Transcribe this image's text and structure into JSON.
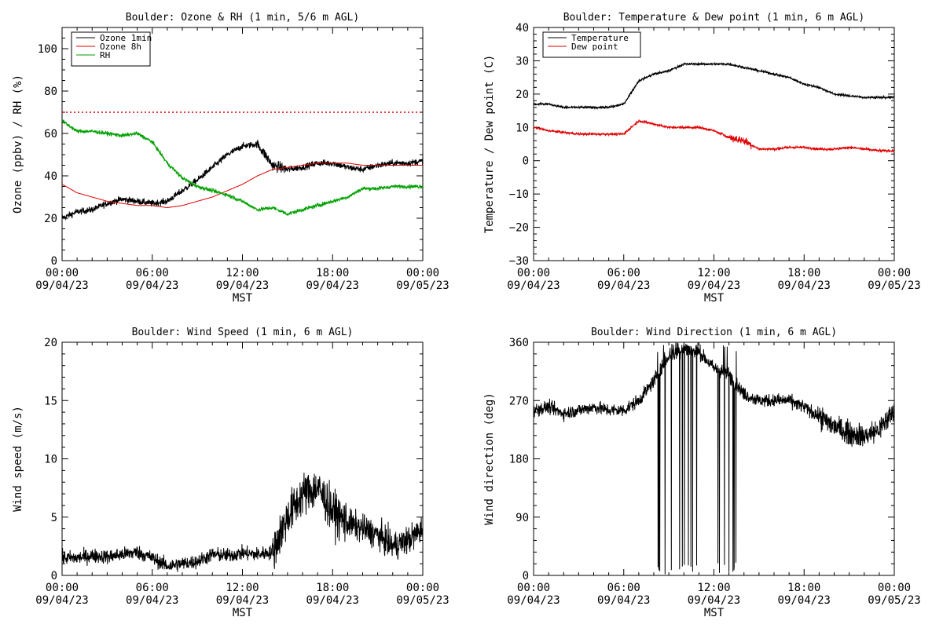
{
  "charts": [
    {
      "id": "ozone",
      "title": "Boulder: Ozone & RH (1 min, 5/6 m AGL)",
      "ylabel": "Ozone (ppbv) / RH (%)",
      "xlabel": "MST",
      "ylim": [
        0,
        110
      ],
      "yticks": [
        "0",
        "20",
        "40",
        "60",
        "80",
        "100"
      ],
      "ytick_values": [
        0,
        20,
        40,
        60,
        80,
        100
      ],
      "legend": [
        {
          "label": "Ozone 1min",
          "color": "#000000"
        },
        {
          "label": "Ozone 8h",
          "color": "#e00000"
        },
        {
          "label": "RH",
          "color": "#00a000"
        }
      ]
    },
    {
      "id": "temp",
      "title": "Boulder: Temperature & Dew point (1 min, 6 m AGL)",
      "ylabel": "Temperature / Dew point (C)",
      "xlabel": "MST",
      "ylim": [
        -30,
        40
      ],
      "yticks": [
        "−30",
        "−20",
        "−10",
        "0",
        "10",
        "20",
        "30",
        "40"
      ],
      "ytick_values": [
        -30,
        -20,
        -10,
        0,
        10,
        20,
        30,
        40
      ],
      "legend": [
        {
          "label": "Temperature",
          "color": "#000000"
        },
        {
          "label": "Dew point",
          "color": "#e00000"
        }
      ]
    },
    {
      "id": "wspd",
      "title": "Boulder: Wind Speed (1 min, 6 m AGL)",
      "ylabel": "Wind speed (m/s)",
      "xlabel": "MST",
      "ylim": [
        0,
        20
      ],
      "yticks": [
        "0",
        "5",
        "10",
        "15",
        "20"
      ],
      "ytick_values": [
        0,
        5,
        10,
        15,
        20
      ],
      "legend": []
    },
    {
      "id": "wdir",
      "title": "Boulder: Wind Direction (1 min, 6 m AGL)",
      "ylabel": "Wind direction (deg)",
      "xlabel": "MST",
      "ylim": [
        0,
        360
      ],
      "yticks": [
        "0",
        "90",
        "180",
        "270",
        "360"
      ],
      "ytick_values": [
        0,
        90,
        180,
        270,
        360
      ],
      "legend": []
    }
  ],
  "x_ticks": [
    {
      "time": "00:00",
      "date": "09/04/23"
    },
    {
      "time": "06:00",
      "date": "09/04/23"
    },
    {
      "time": "12:00",
      "date": "09/04/23"
    },
    {
      "time": "18:00",
      "date": "09/04/23"
    },
    {
      "time": "00:00",
      "date": "09/05/23"
    }
  ],
  "chart_data": [
    {
      "type": "line",
      "title": "Boulder: Ozone & RH (1 min, 5/6 m AGL)",
      "xlabel": "MST",
      "ylabel": "Ozone (ppbv) / RH (%)",
      "xlim": [
        "09/04/23 00:00",
        "09/05/23 00:00"
      ],
      "ylim": [
        0,
        110
      ],
      "x_hours": [
        0,
        1,
        2,
        3,
        4,
        5,
        6,
        7,
        8,
        9,
        10,
        11,
        12,
        13,
        14,
        15,
        16,
        17,
        18,
        19,
        20,
        21,
        22,
        23,
        24
      ],
      "series": [
        {
          "name": "Ozone 1min",
          "color": "#000000",
          "values": [
            20,
            23,
            24,
            27,
            29,
            28,
            27,
            28,
            33,
            38,
            44,
            50,
            54,
            55,
            45,
            43,
            44,
            46,
            46,
            44,
            43,
            45,
            46,
            46,
            47
          ]
        },
        {
          "name": "Ozone 8h",
          "color": "#e00000",
          "values": [
            36,
            32,
            30,
            28,
            27,
            26,
            26,
            25,
            26,
            28,
            30,
            33,
            36,
            40,
            43,
            44,
            45,
            46,
            46,
            46,
            45,
            45,
            45,
            45,
            45
          ]
        },
        {
          "name": "RH",
          "color": "#00a000",
          "values": [
            66,
            61,
            61,
            60,
            59,
            60,
            56,
            46,
            39,
            35,
            33,
            31,
            28,
            24,
            25,
            22,
            24,
            26,
            28,
            30,
            34,
            34,
            35,
            35,
            35
          ]
        }
      ],
      "reference_line": {
        "y": 70,
        "color": "#e00000",
        "style": "dotted"
      },
      "legend_placement": "top-left"
    },
    {
      "type": "line",
      "title": "Boulder: Temperature & Dew point (1 min, 6 m AGL)",
      "xlabel": "MST",
      "ylabel": "Temperature / Dew point (C)",
      "xlim": [
        "09/04/23 00:00",
        "09/05/23 00:00"
      ],
      "ylim": [
        -30,
        40
      ],
      "x_hours": [
        0,
        1,
        2,
        3,
        4,
        5,
        6,
        7,
        8,
        9,
        10,
        11,
        12,
        13,
        14,
        15,
        16,
        17,
        18,
        19,
        20,
        21,
        22,
        23,
        24
      ],
      "series": [
        {
          "name": "Temperature",
          "color": "#000000",
          "values": [
            17,
            17,
            16,
            16,
            16,
            16,
            17,
            24,
            26,
            27,
            29,
            29,
            29,
            29,
            28,
            27,
            26,
            25,
            23,
            22,
            20,
            19.5,
            19,
            19,
            19
          ]
        },
        {
          "name": "Dew point",
          "color": "#e00000",
          "values": [
            10,
            9,
            8.5,
            8,
            8,
            8,
            8,
            12,
            11,
            10,
            10,
            10,
            9,
            7,
            6,
            3.5,
            3.5,
            4,
            4,
            3.5,
            3.5,
            4,
            3.5,
            3,
            3
          ]
        }
      ],
      "legend_placement": "top-left"
    },
    {
      "type": "line",
      "title": "Boulder: Wind Speed (1 min, 6 m AGL)",
      "xlabel": "MST",
      "ylabel": "Wind speed (m/s)",
      "xlim": [
        "09/04/23 00:00",
        "09/05/23 00:00"
      ],
      "ylim": [
        0,
        20
      ],
      "x_hours": [
        0,
        1,
        2,
        3,
        4,
        5,
        6,
        7,
        8,
        9,
        10,
        11,
        12,
        13,
        14,
        15,
        16,
        17,
        18,
        19,
        20,
        21,
        22,
        23,
        24
      ],
      "series": [
        {
          "values": [
            1.5,
            1.5,
            1.7,
            1.6,
            1.8,
            2.0,
            1.5,
            0.8,
            1.0,
            1.2,
            1.8,
            1.7,
            1.9,
            1.8,
            2.0,
            5.0,
            7.0,
            7.5,
            5.5,
            4.5,
            4.0,
            3.5,
            2.5,
            3.0,
            4.0
          ]
        }
      ]
    },
    {
      "type": "line",
      "title": "Boulder: Wind Direction (1 min, 6 m AGL)",
      "xlabel": "MST",
      "ylabel": "Wind direction (deg)",
      "xlim": [
        "09/04/23 00:00",
        "09/05/23 00:00"
      ],
      "ylim": [
        0,
        360
      ],
      "x_hours": [
        0,
        1,
        2,
        3,
        4,
        5,
        6,
        7,
        8,
        9,
        10,
        11,
        12,
        13,
        14,
        15,
        16,
        17,
        18,
        19,
        20,
        21,
        22,
        23,
        24
      ],
      "series": [
        {
          "values": [
            255,
            260,
            250,
            255,
            260,
            255,
            255,
            270,
            300,
            340,
            350,
            345,
            320,
            310,
            280,
            270,
            270,
            270,
            260,
            245,
            230,
            220,
            215,
            225,
            255
          ]
        }
      ]
    }
  ]
}
